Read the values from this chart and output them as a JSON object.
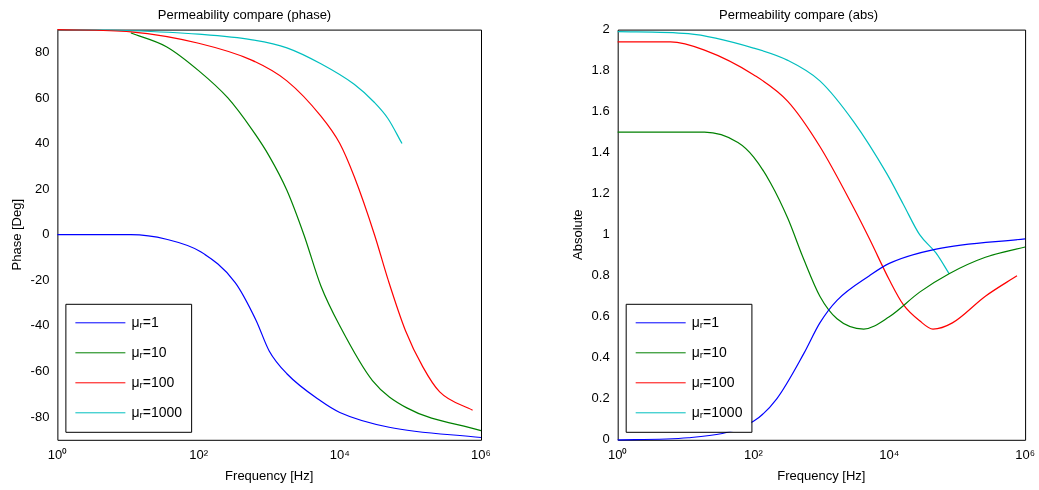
{
  "chart_data": [
    {
      "type": "line",
      "title": "Permeability compare (phase)",
      "xlabel": "Frequency [Hz]",
      "ylabel": "Phase [Deg]",
      "log": "x",
      "legend": "bottom left",
      "xlim": [
        1,
        1000000
      ],
      "xticks": [
        {
          "value": 1,
          "label": "10⁰"
        },
        {
          "value": 100,
          "label": "10²"
        },
        {
          "value": 10000,
          "label": "10⁴"
        },
        {
          "value": 1000000,
          "label": "10⁶"
        }
      ],
      "ylim": [
        -90,
        90
      ],
      "yticks": [
        -80,
        -60,
        -40,
        -20,
        0,
        20,
        40,
        60,
        80
      ],
      "series": [
        {
          "name": "μᵣ=1",
          "color": "#0000ff",
          "x": [
            1,
            11,
            35,
            107,
            330,
            650,
            1000,
            1780,
            5400,
            10000,
            50000,
            1000000
          ],
          "values": [
            0,
            0,
            -2,
            -7.5,
            -21,
            -37.5,
            -51,
            -61,
            -73,
            -78,
            -84.5,
            -89
          ]
        },
        {
          "name": "μᵣ=10",
          "color": "#008000",
          "x": [
            11,
            35,
            100,
            260,
            575,
            1000,
            1780,
            3100,
            5400,
            10000,
            29000,
            89000,
            1000000
          ],
          "values": [
            88.5,
            82.5,
            72,
            60,
            46,
            34.5,
            19.5,
            0,
            -22.5,
            -40,
            -64,
            -76,
            -86
          ]
        },
        {
          "name": "μᵣ=100",
          "color": "#ff0000",
          "x": [
            1,
            11,
            100,
            575,
            1780,
            5400,
            10000,
            16000,
            31000,
            48000,
            85000,
            150000,
            260000,
            760000
          ],
          "values": [
            90,
            89,
            84,
            76.5,
            67.5,
            52,
            40,
            25.5,
            0,
            -19.5,
            -42,
            -58,
            -69,
            -77
          ]
        },
        {
          "name": "μᵣ=1000",
          "color": "#00bfbf",
          "x": [
            1,
            11,
            100,
            575,
            1780,
            5400,
            16000,
            31000,
            48000,
            76000
          ],
          "values": [
            90,
            89.5,
            88,
            85.5,
            82,
            75,
            66,
            58,
            51,
            40
          ]
        }
      ]
    },
    {
      "type": "line",
      "title": "Permeability compare (abs)",
      "xlabel": "Frequency [Hz]",
      "ylabel": "Absolute",
      "log": "x",
      "legend": "bottom left",
      "xlim": [
        1,
        1000000
      ],
      "xticks": [
        {
          "value": 1,
          "label": "10⁰"
        },
        {
          "value": 100,
          "label": "10²"
        },
        {
          "value": 10000,
          "label": "10⁴"
        },
        {
          "value": 1000000,
          "label": "10⁶"
        }
      ],
      "ylim": [
        0,
        2
      ],
      "yticks": [
        0,
        0.2,
        0.4,
        0.6,
        0.8,
        1,
        1.2,
        1.4,
        1.6,
        1.8,
        2
      ],
      "series": [
        {
          "name": "μᵣ=1",
          "color": "#0000ff",
          "x": [
            1,
            11,
            100,
            220,
            550,
            950,
            1700,
            5100,
            10000,
            49000,
            1000000
          ],
          "values": [
            0,
            0.01,
            0.09,
            0.2,
            0.42,
            0.57,
            0.68,
            0.8,
            0.86,
            0.93,
            0.98
          ]
        },
        {
          "name": "μᵣ=10",
          "color": "#008000",
          "x": [
            1,
            19,
            59,
            100,
            180,
            320,
            550,
            950,
            1700,
            4200,
            10000,
            28000,
            76000,
            260000,
            1000000
          ],
          "values": [
            1.5,
            1.5,
            1.45,
            1.38,
            1.25,
            1.08,
            0.88,
            0.7,
            0.59,
            0.54,
            0.6,
            0.72,
            0.81,
            0.89,
            0.94
          ]
        },
        {
          "name": "μᵣ=100",
          "color": "#ff0000",
          "x": [
            1,
            6,
            19,
            100,
            320,
            950,
            3000,
            5100,
            10000,
            16000,
            28000,
            44000,
            85000,
            260000,
            760000
          ],
          "values": [
            1.94,
            1.94,
            1.9,
            1.78,
            1.65,
            1.43,
            1.13,
            0.98,
            0.78,
            0.66,
            0.58,
            0.54,
            0.57,
            0.7,
            0.8
          ]
        },
        {
          "name": "μᵣ=1000",
          "color": "#00bfbf",
          "x": [
            1,
            11,
            100,
            320,
            950,
            3000,
            9100,
            16000,
            28000,
            49000,
            76000
          ],
          "values": [
            1.99,
            1.98,
            1.91,
            1.85,
            1.75,
            1.55,
            1.3,
            1.15,
            1,
            0.91,
            0.81
          ]
        }
      ]
    }
  ]
}
